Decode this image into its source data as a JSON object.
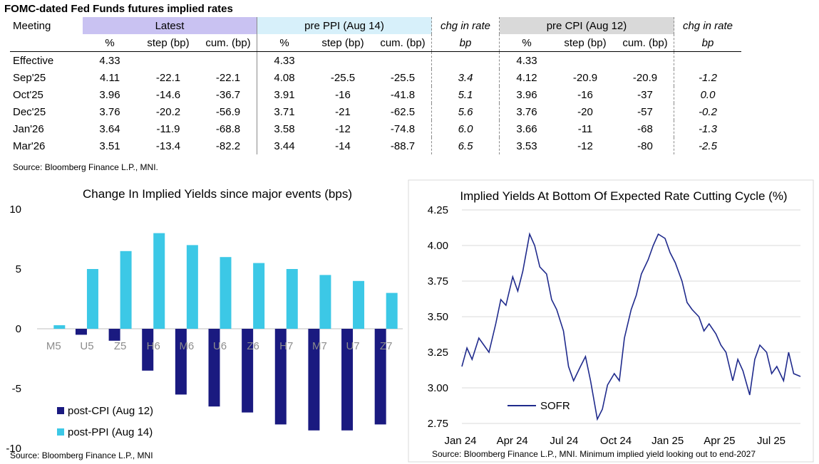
{
  "table": {
    "title": "FOMC-dated Fed Funds futures implied rates",
    "headers": {
      "meeting": "Meeting",
      "latest": "Latest",
      "pre_ppi": "pre PPI (Aug 14)",
      "chg_rate": "chg in rate",
      "pre_cpi": "pre CPI (Aug 12)",
      "chg_rate2": "chg in rate"
    },
    "subheaders": {
      "pct": "%",
      "step": "step (bp)",
      "cum": "cum. (bp)",
      "bp": "bp"
    },
    "rows": [
      {
        "meeting": "Effective",
        "l_pct": "4.33",
        "l_step": "",
        "l_cum": "",
        "p_pct": "4.33",
        "p_step": "",
        "p_cum": "",
        "chg1": "",
        "c_pct": "4.33",
        "c_step": "",
        "c_cum": "",
        "chg2": ""
      },
      {
        "meeting": "Sep'25",
        "l_pct": "4.11",
        "l_step": "-22.1",
        "l_cum": "-22.1",
        "p_pct": "4.08",
        "p_step": "-25.5",
        "p_cum": "-25.5",
        "chg1": "3.4",
        "c_pct": "4.12",
        "c_step": "-20.9",
        "c_cum": "-20.9",
        "chg2": "-1.2"
      },
      {
        "meeting": "Oct'25",
        "l_pct": "3.96",
        "l_step": "-14.6",
        "l_cum": "-36.7",
        "p_pct": "3.91",
        "p_step": "-16",
        "p_cum": "-41.8",
        "chg1": "5.1",
        "c_pct": "3.96",
        "c_step": "-16",
        "c_cum": "-37",
        "chg2": "0.0"
      },
      {
        "meeting": "Dec'25",
        "l_pct": "3.76",
        "l_step": "-20.2",
        "l_cum": "-56.9",
        "p_pct": "3.71",
        "p_step": "-21",
        "p_cum": "-62.5",
        "chg1": "5.6",
        "c_pct": "3.76",
        "c_step": "-20",
        "c_cum": "-57",
        "chg2": "-0.2"
      },
      {
        "meeting": "Jan'26",
        "l_pct": "3.64",
        "l_step": "-11.9",
        "l_cum": "-68.8",
        "p_pct": "3.58",
        "p_step": "-12",
        "p_cum": "-74.8",
        "chg1": "6.0",
        "c_pct": "3.66",
        "c_step": "-11",
        "c_cum": "-68",
        "chg2": "-1.3"
      },
      {
        "meeting": "Mar'26",
        "l_pct": "3.51",
        "l_step": "-13.4",
        "l_cum": "-82.2",
        "p_pct": "3.44",
        "p_step": "-14",
        "p_cum": "-88.7",
        "chg1": "6.5",
        "c_pct": "3.53",
        "c_step": "-12",
        "c_cum": "-80",
        "chg2": "-2.5"
      }
    ],
    "source": "Source: Bloomberg Finance L.P., MNI."
  },
  "colors": {
    "latest_bg": "#c9c2f2",
    "ppi_bg": "#d7f0fa",
    "cpi_bg": "#d9d9d9",
    "post_cpi": "#1a1a80",
    "post_ppi": "#3cc8e6",
    "sofr_line": "#1f2a8c"
  },
  "chart_data": [
    {
      "type": "bar",
      "title": "Change In Implied Yields since major events (bps)",
      "categories": [
        "M5",
        "U5",
        "Z5",
        "H6",
        "M6",
        "U6",
        "Z6",
        "H7",
        "M7",
        "U7",
        "Z7"
      ],
      "series": [
        {
          "name": "post-CPI (Aug 12)",
          "values": [
            0,
            -0.5,
            -1,
            -3.5,
            -5.5,
            -6.5,
            -7,
            -8,
            -8.5,
            -8.5,
            -8
          ]
        },
        {
          "name": "post-PPI (Aug 14)",
          "values": [
            0.3,
            5,
            6.5,
            8,
            7,
            6,
            5.5,
            5,
            4.5,
            4,
            3
          ]
        }
      ],
      "yticks": [
        "10",
        "5",
        "0",
        "-5",
        "-10"
      ],
      "ylim": [
        -10,
        10
      ],
      "legend": "bottom-left",
      "source": "Source: Bloomberg Finance L.P., MNI"
    },
    {
      "type": "line",
      "title": "Implied Yields At Bottom Of Expected Rate Cutting Cycle (%)",
      "xticks": [
        "Jan 24",
        "Apr 24",
        "Jul 24",
        "Oct 24",
        "Jan 25",
        "Apr 25",
        "Jul 25"
      ],
      "yticks": [
        "4.25",
        "4.00",
        "3.75",
        "3.50",
        "3.25",
        "3.00",
        "2.75"
      ],
      "ylim": [
        2.75,
        4.25
      ],
      "series": [
        {
          "name": "SOFR",
          "x": [
            0,
            0.3,
            0.6,
            1.0,
            1.3,
            1.6,
            2.0,
            2.3,
            2.6,
            3.0,
            3.3,
            3.6,
            4.0,
            4.3,
            4.6,
            5.0,
            5.3,
            5.6,
            6.0,
            6.3,
            6.6,
            7.0,
            7.3,
            7.6,
            8.0,
            8.3,
            8.6,
            9.0,
            9.3,
            9.6,
            10.0,
            10.3,
            10.6,
            11.0,
            11.3,
            11.6,
            12.0,
            12.3,
            12.6,
            13.0,
            13.3,
            13.6,
            14.0,
            14.3,
            14.6,
            15.0,
            15.3,
            15.6,
            16.0,
            16.3,
            16.6,
            17.0,
            17.3,
            17.6,
            18.0,
            18.3,
            18.6,
            19.0,
            19.3,
            19.6,
            20.0
          ],
          "values": [
            3.15,
            3.28,
            3.2,
            3.35,
            3.3,
            3.25,
            3.45,
            3.62,
            3.58,
            3.78,
            3.68,
            3.82,
            4.08,
            4.0,
            3.85,
            3.8,
            3.62,
            3.55,
            3.4,
            3.15,
            3.05,
            3.15,
            3.22,
            3.05,
            2.78,
            2.85,
            3.02,
            3.1,
            3.05,
            3.35,
            3.55,
            3.65,
            3.8,
            3.9,
            4.0,
            4.08,
            4.05,
            3.95,
            3.88,
            3.75,
            3.6,
            3.55,
            3.5,
            3.4,
            3.45,
            3.38,
            3.3,
            3.25,
            3.05,
            3.2,
            3.12,
            2.95,
            3.2,
            3.3,
            3.25,
            3.1,
            3.15,
            3.05,
            3.25,
            3.1,
            3.08
          ]
        }
      ],
      "legend": "bottom-left",
      "source": "Source: Bloomberg Finance L.P., MNI. Minimum implied yield looking out to end-2027"
    }
  ]
}
